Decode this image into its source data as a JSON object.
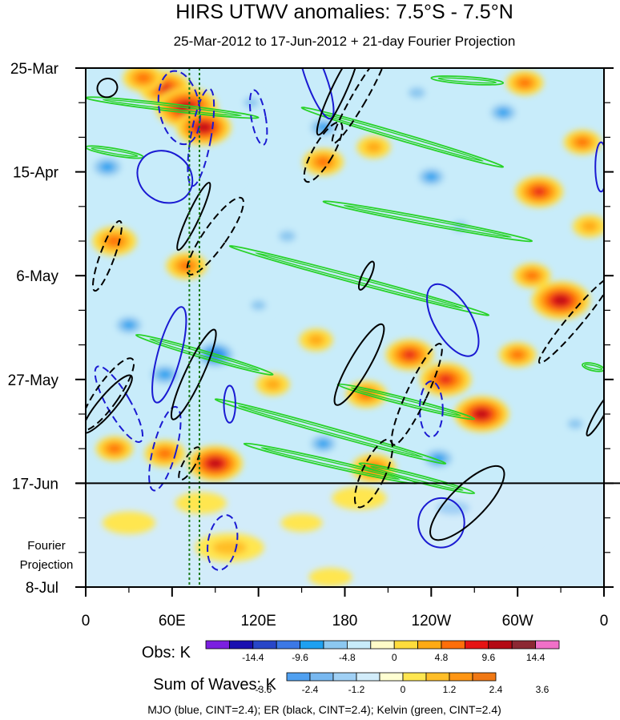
{
  "chart_data": {
    "type": "heatmap",
    "title": "HIRS UTWV anomalies: 7.5°S - 7.5°N",
    "subtitle": "25-Mar-2012 to 17-Jun-2012 + 21-day Fourier Projection",
    "xlabel": "",
    "ylabel": "",
    "x_ticks": [
      "0",
      "60E",
      "120E",
      "180",
      "120W",
      "60W",
      "0"
    ],
    "x_tick_values": [
      0,
      60,
      120,
      180,
      240,
      300,
      360
    ],
    "y_ticks": [
      "25-Mar",
      "15-Apr",
      "6-May",
      "27-May",
      "17-Jun",
      "8-Jul"
    ],
    "y_tick_days": [
      0,
      21,
      42,
      63,
      84,
      105
    ],
    "xlim": [
      0,
      360
    ],
    "ylim_days": [
      0,
      105
    ],
    "projection_start_day": 84,
    "projection_label": [
      "Fourier",
      "Projection"
    ],
    "vertical_lines_lon": [
      72,
      79
    ],
    "obs_colorbar": {
      "label": "Obs: K",
      "colors": [
        "#7b1fe0",
        "#1a10b0",
        "#2846c8",
        "#3c78e6",
        "#1ea0f0",
        "#8cc8f0",
        "#c8ecfa",
        "#fffbc8",
        "#ffdc3c",
        "#ffaa14",
        "#ff6e0a",
        "#e61414",
        "#b40a14",
        "#8c2832",
        "#f070c8"
      ],
      "labels": [
        "-14.4",
        "-9.6",
        "-4.8",
        "0",
        "4.8",
        "9.6",
        "14.4"
      ]
    },
    "waves_colorbar": {
      "label": "Sum of Waves: K",
      "colors": [
        "#50a0f0",
        "#78b8f0",
        "#a0d0f5",
        "#d2ecfa",
        "#ffffd2",
        "#ffe650",
        "#ffbe28",
        "#ff9614",
        "#f07814"
      ],
      "labels": [
        "-3.6",
        "-2.4",
        "-1.2",
        "0",
        "1.2",
        "2.4",
        "3.6"
      ]
    },
    "footer": "MJO (blue, CINT=2.4); ER (black, CINT=2.4); Kelvin (green, CINT=2.4)",
    "series": [
      {
        "name": "MJO",
        "color": "#1a1ad2",
        "cint": 2.4
      },
      {
        "name": "ER",
        "color": "#000000",
        "cint": 2.4
      },
      {
        "name": "Kelvin",
        "color": "#28d228",
        "cint": 2.4
      }
    ],
    "anomaly_blobs": [
      {
        "lon": 55,
        "day": 4,
        "v": 10
      },
      {
        "lon": 70,
        "day": 8,
        "v": 13
      },
      {
        "lon": 82,
        "day": 12,
        "v": 11
      },
      {
        "lon": 40,
        "day": 2,
        "v": 7
      },
      {
        "lon": 115,
        "day": 7,
        "v": -4
      },
      {
        "lon": 165,
        "day": 12,
        "v": -6
      },
      {
        "lon": 230,
        "day": 5,
        "v": -5
      },
      {
        "lon": 290,
        "day": 9,
        "v": -6
      },
      {
        "lon": 305,
        "day": 3,
        "v": 6
      },
      {
        "lon": 345,
        "day": 15,
        "v": 6
      },
      {
        "lon": 15,
        "day": 20,
        "v": -7
      },
      {
        "lon": 100,
        "day": 22,
        "v": -3
      },
      {
        "lon": 200,
        "day": 16,
        "v": 5
      },
      {
        "lon": 240,
        "day": 22,
        "v": -6
      },
      {
        "lon": 315,
        "day": 25,
        "v": 9
      },
      {
        "lon": 165,
        "day": 19,
        "v": 7
      },
      {
        "lon": 20,
        "day": 35,
        "v": 8
      },
      {
        "lon": 70,
        "day": 40,
        "v": 7
      },
      {
        "lon": 140,
        "day": 34,
        "v": -5
      },
      {
        "lon": 260,
        "day": 32,
        "v": -4
      },
      {
        "lon": 330,
        "day": 47,
        "v": 12
      },
      {
        "lon": 310,
        "day": 42,
        "v": 6
      },
      {
        "lon": 30,
        "day": 52,
        "v": -6
      },
      {
        "lon": 90,
        "day": 58,
        "v": -9
      },
      {
        "lon": 55,
        "day": 62,
        "v": -7
      },
      {
        "lon": 160,
        "day": 55,
        "v": 5
      },
      {
        "lon": 225,
        "day": 58,
        "v": 9
      },
      {
        "lon": 250,
        "day": 63,
        "v": 10
      },
      {
        "lon": 275,
        "day": 70,
        "v": 11
      },
      {
        "lon": 195,
        "day": 66,
        "v": 7
      },
      {
        "lon": 300,
        "day": 58,
        "v": 6
      },
      {
        "lon": 130,
        "day": 64,
        "v": 5
      },
      {
        "lon": 20,
        "day": 77,
        "v": 6
      },
      {
        "lon": 55,
        "day": 78,
        "v": 7
      },
      {
        "lon": 90,
        "day": 80,
        "v": 11
      },
      {
        "lon": 165,
        "day": 76,
        "v": -6
      },
      {
        "lon": 200,
        "day": 81,
        "v": 8
      },
      {
        "lon": 245,
        "day": 79,
        "v": -7
      },
      {
        "lon": 340,
        "day": 72,
        "v": -4
      },
      {
        "lon": 120,
        "day": 48,
        "v": -4
      },
      {
        "lon": 210,
        "day": 42,
        "v": -3
      },
      {
        "lon": 350,
        "day": 32,
        "v": 5
      }
    ],
    "projection_blobs": [
      {
        "lon": 30,
        "day": 92,
        "v": 1.5
      },
      {
        "lon": 100,
        "day": 97,
        "v": 2.5
      },
      {
        "lon": 150,
        "day": 92,
        "v": 0.8
      },
      {
        "lon": 190,
        "day": 87,
        "v": 1.6
      },
      {
        "lon": 255,
        "day": 89,
        "v": -2.4
      },
      {
        "lon": 300,
        "day": 95,
        "v": -1.0
      },
      {
        "lon": 40,
        "day": 100,
        "v": -1.1
      },
      {
        "lon": 340,
        "day": 98,
        "v": -0.8
      },
      {
        "lon": 210,
        "day": 100,
        "v": -0.9
      },
      {
        "lon": 80,
        "day": 88,
        "v": 1.4
      },
      {
        "lon": 170,
        "day": 103,
        "v": 0.9
      }
    ],
    "mjo_contours": [
      {
        "lon": 160,
        "day": 2,
        "rx": 7,
        "ry": 14,
        "rot": -20,
        "dash": false
      },
      {
        "lon": 65,
        "day": 8,
        "rx": 14,
        "ry": 12,
        "rot": -10,
        "dash": true
      },
      {
        "lon": 120,
        "day": 10,
        "rx": 5,
        "ry": 9,
        "rot": -10,
        "dash": true
      },
      {
        "lon": 80,
        "day": 14,
        "rx": 7,
        "ry": 16,
        "rot": 10,
        "dash": true
      },
      {
        "lon": 358,
        "day": 20,
        "rx": 4,
        "ry": 8,
        "rot": 0,
        "dash": false
      },
      {
        "lon": 55,
        "day": 22,
        "rx": 20,
        "ry": 8,
        "rot": 35,
        "dash": false
      },
      {
        "lon": 255,
        "day": 51,
        "rx": 13,
        "ry": 13,
        "rot": -30,
        "dash": false
      },
      {
        "lon": 58,
        "day": 58,
        "rx": 8,
        "ry": 16,
        "rot": 15,
        "dash": false
      },
      {
        "lon": 55,
        "day": 77,
        "rx": 8,
        "ry": 14,
        "rot": 15,
        "dash": true
      },
      {
        "lon": 100,
        "day": 68,
        "rx": 4,
        "ry": 6,
        "rot": 0,
        "dash": false
      },
      {
        "lon": 240,
        "day": 69,
        "rx": 8,
        "ry": 9,
        "rot": 0,
        "dash": true
      },
      {
        "lon": 247,
        "day": 92,
        "rx": 16,
        "ry": 8,
        "rot": 5,
        "dash": false
      },
      {
        "lon": 95,
        "day": 96,
        "rx": 10,
        "ry": 9,
        "rot": 10,
        "dash": true
      },
      {
        "lon": 23,
        "day": 68,
        "rx": 8,
        "ry": 14,
        "rot": -30,
        "dash": true
      }
    ],
    "er_contours": [
      {
        "lon": 15,
        "day": 4,
        "rx": 7,
        "ry": 3,
        "rot": -20,
        "dash": false
      },
      {
        "lon": 175,
        "day": 5,
        "rx": 5,
        "ry": 15,
        "rot": 25,
        "dash": false
      },
      {
        "lon": 190,
        "day": 6,
        "rx": 5,
        "ry": 17,
        "rot": 30,
        "dash": true
      },
      {
        "lon": 165,
        "day": 17,
        "rx": 7,
        "ry": 11,
        "rot": 30,
        "dash": true
      },
      {
        "lon": 75,
        "day": 30,
        "rx": 4,
        "ry": 12,
        "rot": 25,
        "dash": false
      },
      {
        "lon": 90,
        "day": 34,
        "rx": 8,
        "ry": 15,
        "rot": 35,
        "dash": true
      },
      {
        "lon": 15,
        "day": 38,
        "rx": 5,
        "ry": 12,
        "rot": 20,
        "dash": true
      },
      {
        "lon": 195,
        "day": 42,
        "rx": 3,
        "ry": 5,
        "rot": 25,
        "dash": false
      },
      {
        "lon": 340,
        "day": 51,
        "rx": 5,
        "ry": 18,
        "rot": 40,
        "dash": true
      },
      {
        "lon": 75,
        "day": 62,
        "rx": 6,
        "ry": 16,
        "rot": 25,
        "dash": false
      },
      {
        "lon": 15,
        "day": 66,
        "rx": 8,
        "ry": 14,
        "rot": 35,
        "dash": true
      },
      {
        "lon": 15,
        "day": 68,
        "rx": 6,
        "ry": 12,
        "rot": 40,
        "dash": false
      },
      {
        "lon": 190,
        "day": 60,
        "rx": 7,
        "ry": 15,
        "rot": 30,
        "dash": false
      },
      {
        "lon": 230,
        "day": 66,
        "rx": 7,
        "ry": 18,
        "rot": 25,
        "dash": true
      },
      {
        "lon": 200,
        "day": 82,
        "rx": 8,
        "ry": 12,
        "rot": 25,
        "dash": true
      },
      {
        "lon": 265,
        "day": 88,
        "rx": 12,
        "ry": 16,
        "rot": 45,
        "dash": false
      },
      {
        "lon": 72,
        "day": 80,
        "rx": 4,
        "ry": 6,
        "rot": 30,
        "dash": true
      },
      {
        "lon": 357,
        "day": 70,
        "rx": 3,
        "ry": 8,
        "rot": 30,
        "dash": false
      }
    ],
    "kelvin_bands": [
      {
        "lon1": 0,
        "day1": 6,
        "lon2": 120,
        "day2": 10
      },
      {
        "lon1": 150,
        "day1": 8,
        "lon2": 290,
        "day2": 20
      },
      {
        "lon1": 0,
        "day1": 16,
        "lon2": 40,
        "day2": 18
      },
      {
        "lon1": 165,
        "day1": 27,
        "lon2": 310,
        "day2": 35
      },
      {
        "lon1": 100,
        "day1": 36,
        "lon2": 280,
        "day2": 50
      },
      {
        "lon1": 35,
        "day1": 54,
        "lon2": 130,
        "day2": 62
      },
      {
        "lon1": 175,
        "day1": 64,
        "lon2": 270,
        "day2": 71
      },
      {
        "lon1": 90,
        "day1": 67,
        "lon2": 250,
        "day2": 80
      },
      {
        "lon1": 110,
        "day1": 76,
        "lon2": 230,
        "day2": 84
      },
      {
        "lon1": 190,
        "day1": 80,
        "lon2": 270,
        "day2": 86
      },
      {
        "lon1": 345,
        "day1": 60,
        "lon2": 360,
        "day2": 61
      },
      {
        "lon1": 240,
        "day1": 2,
        "lon2": 290,
        "day2": 3
      }
    ]
  }
}
